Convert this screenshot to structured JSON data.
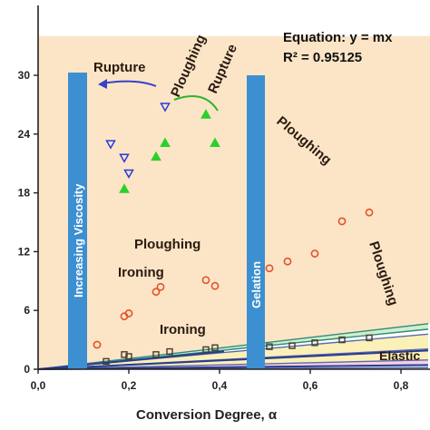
{
  "chart_data": {
    "type": "scatter",
    "xlabel": "Conversion Degree, α",
    "ylabel": "",
    "xlim": [
      0,
      0.86
    ],
    "ylim": [
      0,
      34
    ],
    "x_ticks": [
      "0,0",
      "0,2",
      "0,4",
      "0,6",
      "0,8"
    ],
    "y_ticks": [
      "0",
      "6",
      "12",
      "18",
      "24",
      "30"
    ],
    "equation": "Equation: y = mx",
    "r_squared": "R² = 0.95125",
    "regions": {
      "rupture_top": "Rupture",
      "ploughing_rupture_1": "Ploughing",
      "ploughing_rupture_2": "Rupture",
      "ploughing_upper": "Ploughing",
      "ploughing_mid": "Ploughing",
      "ironing_mid": "Ironing",
      "ploughing_right": "Ploughing",
      "ironing_low": "Ironing",
      "elastic": "Elastic"
    },
    "bars": {
      "viscosity": "Increasing Viscosity",
      "gelation": "Gelation"
    },
    "boundary_slopes": [
      5.4,
      4.75,
      4.17,
      2.4,
      1.1,
      0.52,
      0.18
    ],
    "fit_lines": [
      {
        "slope": 4.42,
        "x_end": 0.41
      },
      {
        "slope": 2.22,
        "x_end": 0.86
      },
      {
        "slope": 0.5,
        "x_end": 0.86
      }
    ],
    "series": [
      {
        "marker": "triangle-down",
        "color": "#2a3ad8",
        "x": [
          0.16,
          0.19,
          0.2,
          0.28
        ],
        "y": [
          23.0,
          21.6,
          20.0,
          26.8
        ]
      },
      {
        "marker": "triangle-up",
        "color": "#2bd12b",
        "x": [
          0.19,
          0.26,
          0.28,
          0.37,
          0.39
        ],
        "y": [
          18.4,
          21.7,
          23.1,
          26.0,
          23.1
        ]
      },
      {
        "marker": "circle",
        "color": "#e4512c",
        "x": [
          0.13,
          0.19,
          0.2,
          0.26,
          0.27,
          0.37,
          0.39,
          0.51,
          0.55,
          0.61,
          0.67,
          0.73
        ],
        "y": [
          2.5,
          5.4,
          5.7,
          7.9,
          8.4,
          9.1,
          8.5,
          10.3,
          11.0,
          11.8,
          15.1,
          16.0
        ]
      },
      {
        "marker": "square",
        "color": "#4a3b2c",
        "x": [
          0.15,
          0.19,
          0.2,
          0.26,
          0.29,
          0.37,
          0.39,
          0.51,
          0.56,
          0.61,
          0.67,
          0.73
        ],
        "y": [
          0.8,
          1.5,
          1.3,
          1.5,
          1.8,
          2.0,
          2.2,
          2.3,
          2.4,
          2.7,
          3.0,
          3.2
        ]
      }
    ]
  }
}
